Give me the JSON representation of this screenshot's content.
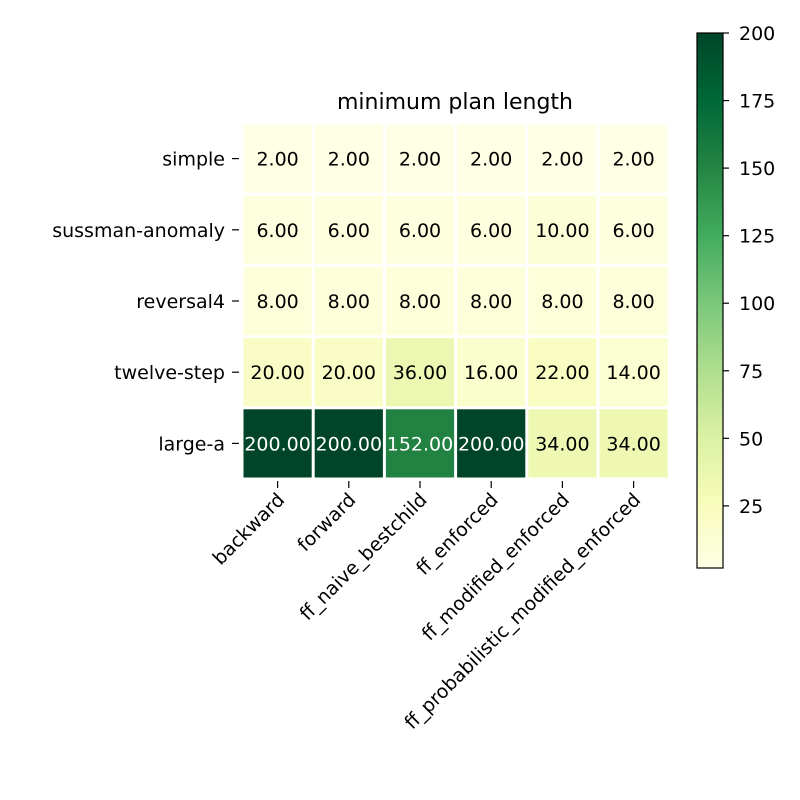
{
  "chart_data": {
    "type": "heatmap",
    "title": "minimum plan length",
    "xlabel": "",
    "ylabel": "",
    "rows": [
      "simple",
      "sussman-anomaly",
      "reversal4",
      "twelve-step",
      "large-a"
    ],
    "columns": [
      "backward",
      "forward",
      "ff_naive_bestchild",
      "ff_enforced",
      "ff_modified_enforced",
      "ff_probabilistic_modified_enforced"
    ],
    "values": [
      [
        2,
        2,
        2,
        2,
        2,
        2
      ],
      [
        6,
        6,
        6,
        6,
        10,
        6
      ],
      [
        8,
        8,
        8,
        8,
        8,
        8
      ],
      [
        20,
        20,
        36,
        16,
        22,
        14
      ],
      [
        200,
        200,
        152,
        200,
        34,
        34
      ]
    ],
    "cell_labels": [
      [
        "2.00",
        "2.00",
        "2.00",
        "2.00",
        "2.00",
        "2.00"
      ],
      [
        "6.00",
        "6.00",
        "6.00",
        "6.00",
        "10.00",
        "6.00"
      ],
      [
        "8.00",
        "8.00",
        "8.00",
        "8.00",
        "8.00",
        "8.00"
      ],
      [
        "20.00",
        "20.00",
        "36.00",
        "16.00",
        "22.00",
        "14.00"
      ],
      [
        "200.00",
        "200.00",
        "152.00",
        "200.00",
        "34.00",
        "34.00"
      ]
    ],
    "colormap": "YlGn",
    "colorbar": {
      "range": [
        2,
        200
      ],
      "ticks": [
        25,
        50,
        75,
        100,
        125,
        150,
        175,
        200
      ],
      "tick_labels": [
        "25",
        "50",
        "75",
        "100",
        "125",
        "150",
        "175",
        "200"
      ]
    },
    "grid": false
  }
}
